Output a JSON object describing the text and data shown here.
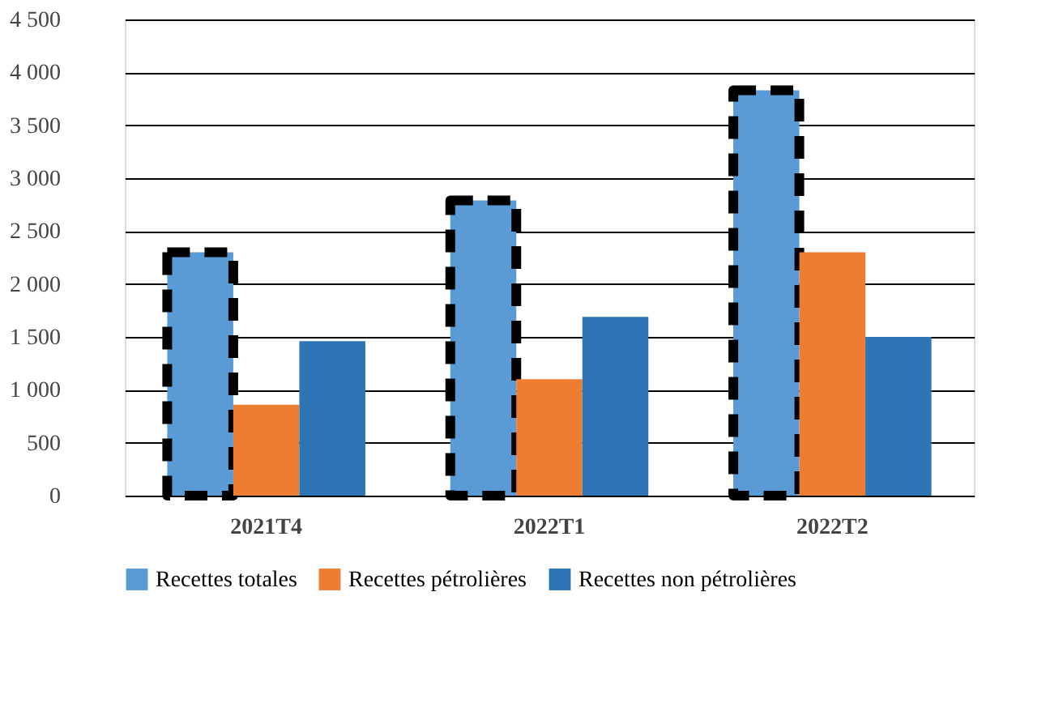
{
  "chart_data": {
    "type": "bar",
    "categories": [
      "2021T4",
      "2022T1",
      "2022T2"
    ],
    "series": [
      {
        "name": "Recettes totales",
        "color": "#5b9bd5",
        "values": [
          2300,
          2790,
          3830
        ],
        "line_style": "dashed"
      },
      {
        "name": "Recettes pétrolières",
        "color": "#ed7d31",
        "values": [
          860,
          1100,
          2300
        ]
      },
      {
        "name": "Recettes non pétrolières",
        "color": "#2e75b6",
        "values": [
          1460,
          1690,
          1500
        ]
      }
    ],
    "ylim": [
      0,
      4500
    ],
    "yticks": [
      {
        "value": 0,
        "label": "0"
      },
      {
        "value": 500,
        "label": "500"
      },
      {
        "value": 1000,
        "label": "1 000"
      },
      {
        "value": 1500,
        "label": "1 500"
      },
      {
        "value": 2000,
        "label": "2 000"
      },
      {
        "value": 2500,
        "label": "2 500"
      },
      {
        "value": 3000,
        "label": "3 000"
      },
      {
        "value": 3500,
        "label": "3 500"
      },
      {
        "value": 4000,
        "label": "4 000"
      },
      {
        "value": 4500,
        "label": "4 500"
      }
    ],
    "grid": "y",
    "legend": "bottom"
  }
}
